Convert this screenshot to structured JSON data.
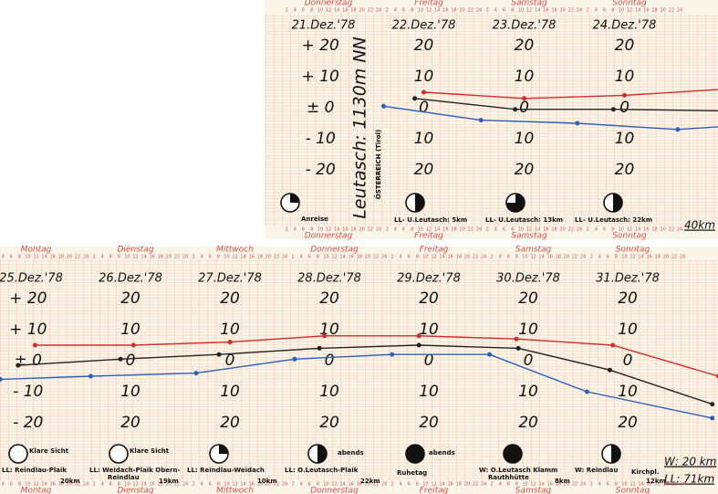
{
  "top": {
    "title": "Leutasch: 1130m NN",
    "subtitle": "ÖSTERREICH (Tirol)",
    "total": "40km",
    "days": [
      "21.Dez.'78",
      "22.Dez.'78",
      "23.Dez.'78",
      "24.Dez.'78"
    ],
    "weekdays": [
      "Donnerstag",
      "Freitag",
      "Samstag",
      "Sonntag"
    ],
    "notes": [
      "Anreise",
      "LL- U.Leutasch: 5km",
      "LL- U.Leutasch: 13km",
      "LL- U.Leutasch: 22km"
    ],
    "series": [
      {
        "color": "#d42a2a",
        "x": [
          1.45,
          2.45,
          3.45,
          4.45
        ],
        "values": [
          5,
          3,
          4,
          6
        ]
      },
      {
        "color": "#222222",
        "x": [
          1.36,
          2.36,
          3.34,
          4.45
        ],
        "values": [
          3,
          -0.5,
          -0.5,
          -1
        ]
      },
      {
        "color": "#2a5fb8",
        "x": [
          1.05,
          2.02,
          2.98,
          3.98,
          4.45
        ],
        "values": [
          0.5,
          -4,
          -5,
          -7,
          -6
        ]
      }
    ]
  },
  "bottom": {
    "total_w": "W: 20 km",
    "total_ll": "LL: 71km",
    "days": [
      "25.Dez.'78",
      "26.Dez.'78",
      "27.Dez.'78",
      "28.Dez.'78",
      "29.Dez.'78",
      "30.Dez.'78",
      "31.Dez.'78"
    ],
    "weekdays": [
      "Montag",
      "Dienstag",
      "Mittwoch",
      "Donnerstag",
      "Freitag",
      "Samstag",
      "Sonntag"
    ],
    "notes": [
      "Klare Sicht",
      "Klare Sicht",
      "LL: Reindlau-Plaik",
      "LL: Weidach-Plaik Obern-",
      "Reindlau",
      "LL: Reindlau-Weidach",
      "LL: O.Leutasch-Plaik",
      "abends",
      "abends",
      "Ruhetag",
      "W: O.Leutasch Klamm",
      "Rauthhütte",
      "W: Reindlau",
      "Kirchpl."
    ],
    "distances": [
      "20km",
      "19km",
      "10km",
      "22km",
      "8km",
      "12km"
    ],
    "series": [
      {
        "color": "#d42a2a",
        "x": [
          0.49,
          1.48,
          2.45,
          3.4,
          4.35,
          5.33,
          6.3,
          7.36
        ],
        "values": [
          5,
          5,
          6,
          8,
          8,
          7,
          5,
          -5
        ]
      },
      {
        "color": "#222222",
        "x": [
          0.32,
          1.35,
          2.34,
          3.35,
          4.35,
          5.35,
          6.27,
          7.3
        ],
        "values": [
          -1.5,
          0.5,
          2,
          4,
          5,
          4,
          -3,
          -14
        ]
      },
      {
        "color": "#2a5fb8",
        "x": [
          0.14,
          1.05,
          2.11,
          3.1,
          4.08,
          5.06,
          6.04,
          7.3
        ],
        "values": [
          -6,
          -5,
          -4,
          0.5,
          2,
          2,
          -10,
          -18.5
        ]
      }
    ]
  },
  "scale": {
    "values": [
      20,
      10,
      0,
      -10,
      -20
    ],
    "signed": [
      "+ 20",
      "+ 10",
      "± 0",
      "- 10",
      "- 20"
    ],
    "plain": [
      "20",
      "10",
      "0",
      "10",
      "20"
    ]
  },
  "hours": [
    2,
    4,
    6,
    8,
    10,
    12,
    14,
    16,
    18,
    20,
    22,
    24
  ]
}
